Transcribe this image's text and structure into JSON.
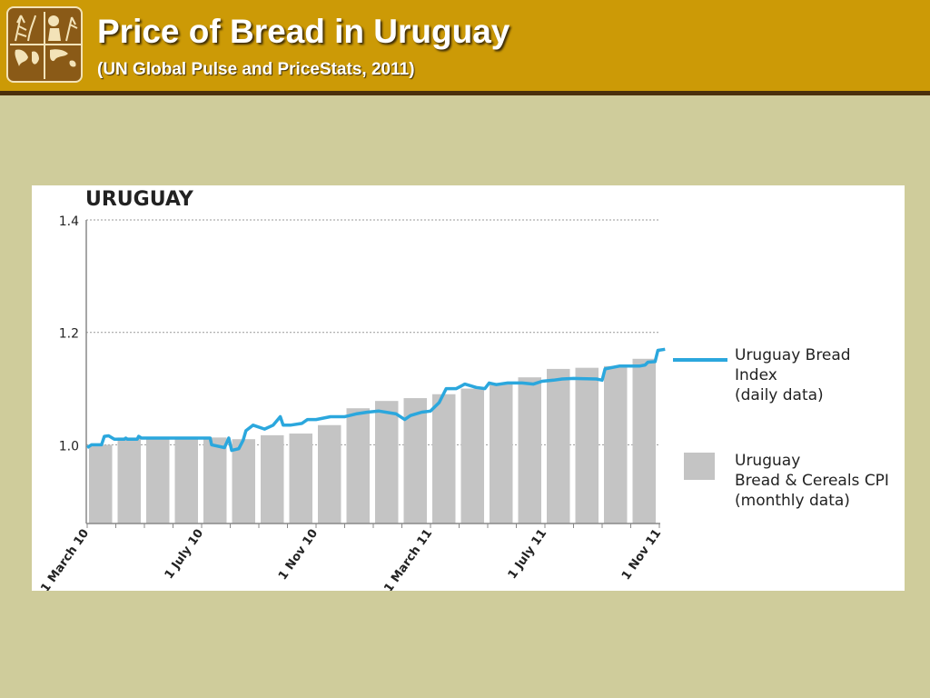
{
  "header": {
    "title": "Price of Bread in Uruguay",
    "subtitle": "(UN Global Pulse and PriceStats, 2011)",
    "logo_icon": "globe-and-wheat-logo-icon"
  },
  "colors": {
    "header_bg": "#cc9a06",
    "header_border": "#4a2f0c",
    "page_bg": "#cfcc9b",
    "bar": "#c4c4c4",
    "line": "#2ba7dd",
    "grid": "#999999"
  },
  "chart_data": {
    "type": "bar",
    "title": "URUGUAY",
    "ylim": [
      0.86,
      1.4
    ],
    "yticks": [
      "1.0",
      "1.2",
      "1.4"
    ],
    "ytick_values": [
      1.0,
      1.2,
      1.4
    ],
    "xticks": [
      {
        "label": "1 March 10",
        "month": 0
      },
      {
        "label": "1 July 10",
        "month": 4
      },
      {
        "label": "1 Nov 10",
        "month": 8
      },
      {
        "label": "1 March 11",
        "month": 12
      },
      {
        "label": "1 July 11",
        "month": 16
      },
      {
        "label": "1 Nov 11",
        "month": 20
      }
    ],
    "grid": "horizontal dotted",
    "series": [
      {
        "name": "Uruguay Bread & Cereals CPI (monthly data)",
        "kind": "bar",
        "x": [
          "Mar 10",
          "Apr 10",
          "May 10",
          "Jun 10",
          "Jul 10",
          "Aug 10",
          "Sep 10",
          "Oct 10",
          "Nov 10",
          "Dec 10",
          "Jan 11",
          "Feb 11",
          "Mar 11",
          "Apr 11",
          "May 11",
          "Jun 11",
          "Jul 11",
          "Aug 11",
          "Sep 11",
          "Oct 11"
        ],
        "values": [
          1.0,
          1.013,
          1.013,
          1.013,
          1.013,
          1.01,
          1.017,
          1.02,
          1.035,
          1.065,
          1.078,
          1.083,
          1.09,
          1.1,
          1.11,
          1.12,
          1.135,
          1.137,
          1.14,
          1.153
        ]
      },
      {
        "name": "Uruguay Bread Index (daily data)",
        "kind": "line",
        "points": [
          [
            0.0,
            0.995
          ],
          [
            0.15,
            1.0
          ],
          [
            0.5,
            1.0
          ],
          [
            0.6,
            1.015
          ],
          [
            0.75,
            1.016
          ],
          [
            0.95,
            1.01
          ],
          [
            1.3,
            1.01
          ],
          [
            1.35,
            1.012
          ],
          [
            1.4,
            1.01
          ],
          [
            1.75,
            1.01
          ],
          [
            1.8,
            1.015
          ],
          [
            1.9,
            1.012
          ],
          [
            2.5,
            1.012
          ],
          [
            3.5,
            1.012
          ],
          [
            4.3,
            1.012
          ],
          [
            4.35,
            1.0
          ],
          [
            4.8,
            0.995
          ],
          [
            4.95,
            1.012
          ],
          [
            5.05,
            0.99
          ],
          [
            5.3,
            0.993
          ],
          [
            5.45,
            1.008
          ],
          [
            5.55,
            1.025
          ],
          [
            5.8,
            1.035
          ],
          [
            6.2,
            1.028
          ],
          [
            6.5,
            1.035
          ],
          [
            6.75,
            1.05
          ],
          [
            6.85,
            1.035
          ],
          [
            7.1,
            1.035
          ],
          [
            7.5,
            1.038
          ],
          [
            7.7,
            1.045
          ],
          [
            8.0,
            1.045
          ],
          [
            8.5,
            1.05
          ],
          [
            9.0,
            1.05
          ],
          [
            9.4,
            1.055
          ],
          [
            9.8,
            1.058
          ],
          [
            10.2,
            1.06
          ],
          [
            10.8,
            1.055
          ],
          [
            11.1,
            1.045
          ],
          [
            11.3,
            1.052
          ],
          [
            11.7,
            1.058
          ],
          [
            12.0,
            1.06
          ],
          [
            12.3,
            1.075
          ],
          [
            12.55,
            1.1
          ],
          [
            12.9,
            1.1
          ],
          [
            13.2,
            1.108
          ],
          [
            13.6,
            1.102
          ],
          [
            13.9,
            1.1
          ],
          [
            14.05,
            1.11
          ],
          [
            14.3,
            1.107
          ],
          [
            14.7,
            1.11
          ],
          [
            15.2,
            1.11
          ],
          [
            15.6,
            1.108
          ],
          [
            15.9,
            1.113
          ],
          [
            16.3,
            1.115
          ],
          [
            16.6,
            1.117
          ],
          [
            17.0,
            1.118
          ],
          [
            17.8,
            1.117
          ],
          [
            18.0,
            1.115
          ],
          [
            18.1,
            1.135
          ],
          [
            18.6,
            1.14
          ],
          [
            19.3,
            1.14
          ],
          [
            19.5,
            1.142
          ],
          [
            19.6,
            1.147
          ],
          [
            19.85,
            1.148
          ],
          [
            19.95,
            1.168
          ],
          [
            20.2,
            1.17
          ]
        ]
      }
    ],
    "legend": {
      "placement": "right",
      "entries": [
        {
          "lines": [
            "Uruguay Bread",
            "Index",
            "(daily data)"
          ],
          "kind": "line"
        },
        {
          "lines": [
            "Uruguay",
            "Bread & Cereals CPI",
            "(monthly data)"
          ],
          "kind": "bar"
        }
      ]
    }
  }
}
